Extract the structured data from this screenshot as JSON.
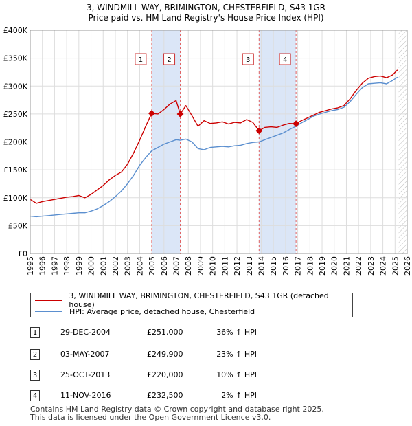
{
  "title_line1": "3, WINDMILL WAY, BRIMINGTON, CHESTERFIELD, S43 1GR",
  "title_line2": "Price paid vs. HM Land Registry's House Price Index (HPI)",
  "legend": {
    "property_label": "3, WINDMILL WAY, BRIMINGTON, CHESTERFIELD, S43 1GR (detached house)",
    "hpi_label": "HPI: Average price, detached house, Chesterfield"
  },
  "colors": {
    "property": "#cc0000",
    "hpi": "#5b8fcf",
    "band": "#dbe6f7",
    "grid": "#dddddd",
    "marker_line": "#e06060"
  },
  "transactions": [
    {
      "num": "1",
      "date": "29-DEC-2004",
      "price": "£251,000",
      "hpi": "36% ↑ HPI"
    },
    {
      "num": "2",
      "date": "03-MAY-2007",
      "price": "£249,900",
      "hpi": "23% ↑ HPI"
    },
    {
      "num": "3",
      "date": "25-OCT-2013",
      "price": "£220,000",
      "hpi": "10% ↑ HPI"
    },
    {
      "num": "4",
      "date": "11-NOV-2016",
      "price": "£232,500",
      "hpi": "2% ↑ HPI"
    }
  ],
  "footer_line1": "Contains HM Land Registry data © Crown copyright and database right 2025.",
  "footer_line2": "This data is licensed under the Open Government Licence v3.0.",
  "chart_data": {
    "type": "line",
    "title": "3, WINDMILL WAY, BRIMINGTON, CHESTERFIELD, S43 1GR — Price paid vs. HM Land Registry's House Price Index (HPI)",
    "xlabel": "",
    "ylabel": "",
    "xlim": [
      1995,
      2026
    ],
    "ylim": [
      0,
      400000
    ],
    "x_ticks": [
      1995,
      1996,
      1997,
      1998,
      1999,
      2000,
      2001,
      2002,
      2003,
      2004,
      2005,
      2006,
      2007,
      2008,
      2009,
      2010,
      2011,
      2012,
      2013,
      2014,
      2015,
      2016,
      2017,
      2018,
      2019,
      2020,
      2021,
      2022,
      2023,
      2024,
      2025,
      2026
    ],
    "y_ticks": [
      {
        "value": 0,
        "label": "£0"
      },
      {
        "value": 50000,
        "label": "£50K"
      },
      {
        "value": 100000,
        "label": "£100K"
      },
      {
        "value": 150000,
        "label": "£150K"
      },
      {
        "value": 200000,
        "label": "£200K"
      },
      {
        "value": 250000,
        "label": "£250K"
      },
      {
        "value": 300000,
        "label": "£300K"
      },
      {
        "value": 350000,
        "label": "£350K"
      },
      {
        "value": 400000,
        "label": "£400K"
      }
    ],
    "grid": true,
    "shaded_bands": [
      [
        2004.99,
        2007.34
      ],
      [
        2013.82,
        2016.86
      ]
    ],
    "hatched_from": 2025.3,
    "sales": [
      {
        "label": "1",
        "x": 2004.99,
        "y": 251000
      },
      {
        "label": "2",
        "x": 2007.34,
        "y": 249900
      },
      {
        "label": "3",
        "x": 2013.82,
        "y": 220000
      },
      {
        "label": "4",
        "x": 2016.86,
        "y": 232500
      }
    ],
    "series": [
      {
        "name": "3, WINDMILL WAY, BRIMINGTON, CHESTERFIELD, S43 1GR (detached house)",
        "x": [
          1995,
          1995.5,
          1996,
          1996.5,
          1997,
          1997.5,
          1998,
          1998.5,
          1999,
          1999.5,
          2000,
          2000.5,
          2001,
          2001.5,
          2002,
          2002.5,
          2003,
          2003.5,
          2004,
          2004.5,
          2004.99,
          2005.5,
          2006,
          2006.5,
          2007,
          2007.34,
          2007.8,
          2008.3,
          2008.8,
          2009.3,
          2009.8,
          2010.3,
          2010.8,
          2011.3,
          2011.8,
          2012.3,
          2012.8,
          2013.3,
          2013.82,
          2014.3,
          2014.8,
          2015.3,
          2015.8,
          2016.3,
          2016.86,
          2017.3,
          2017.8,
          2018.3,
          2018.8,
          2019.3,
          2019.8,
          2020.3,
          2020.8,
          2021.3,
          2021.8,
          2022.3,
          2022.8,
          2023.3,
          2023.8,
          2024.3,
          2024.8,
          2025.2
        ],
        "y": [
          97000,
          90000,
          93000,
          95000,
          97000,
          99000,
          101000,
          102000,
          104000,
          100000,
          106000,
          114000,
          122000,
          132000,
          140000,
          146000,
          160000,
          180000,
          203000,
          228000,
          251000,
          250000,
          258000,
          268000,
          274000,
          249900,
          265000,
          247000,
          228000,
          238000,
          233000,
          234000,
          236000,
          232000,
          235000,
          234000,
          240000,
          235000,
          220000,
          226000,
          227000,
          226000,
          230000,
          233000,
          232500,
          238000,
          243000,
          248000,
          253000,
          256000,
          259000,
          261000,
          265000,
          277000,
          292000,
          305000,
          314000,
          317000,
          318000,
          315000,
          320000,
          329000
        ]
      },
      {
        "name": "HPI: Average price, detached house, Chesterfield",
        "x": [
          1995,
          1995.5,
          1996,
          1996.5,
          1997,
          1997.5,
          1998,
          1998.5,
          1999,
          1999.5,
          2000,
          2000.5,
          2001,
          2001.5,
          2002,
          2002.5,
          2003,
          2003.5,
          2004,
          2004.5,
          2004.99,
          2005.5,
          2006,
          2006.5,
          2007,
          2007.34,
          2007.8,
          2008.3,
          2008.8,
          2009.3,
          2009.8,
          2010.3,
          2010.8,
          2011.3,
          2011.8,
          2012.3,
          2012.8,
          2013.3,
          2013.82,
          2014.3,
          2014.8,
          2015.3,
          2015.8,
          2016.3,
          2016.86,
          2017.3,
          2017.8,
          2018.3,
          2018.8,
          2019.3,
          2019.8,
          2020.3,
          2020.8,
          2021.3,
          2021.8,
          2022.3,
          2022.8,
          2023.3,
          2023.8,
          2024.3,
          2024.8,
          2025.2
        ],
        "y": [
          67000,
          66000,
          67000,
          68000,
          69000,
          70000,
          71000,
          72000,
          73000,
          73000,
          76000,
          80000,
          86000,
          93000,
          102000,
          112000,
          125000,
          140000,
          158000,
          172000,
          184000,
          190000,
          196000,
          200000,
          204000,
          203000,
          205000,
          200000,
          188000,
          186000,
          190000,
          191000,
          192000,
          191000,
          193000,
          194000,
          197000,
          199000,
          200000,
          204000,
          208000,
          212000,
          216000,
          222000,
          228000,
          234000,
          240000,
          246000,
          250000,
          253000,
          256000,
          258000,
          262000,
          272000,
          285000,
          297000,
          304000,
          305000,
          306000,
          304000,
          310000,
          316000
        ]
      }
    ]
  }
}
